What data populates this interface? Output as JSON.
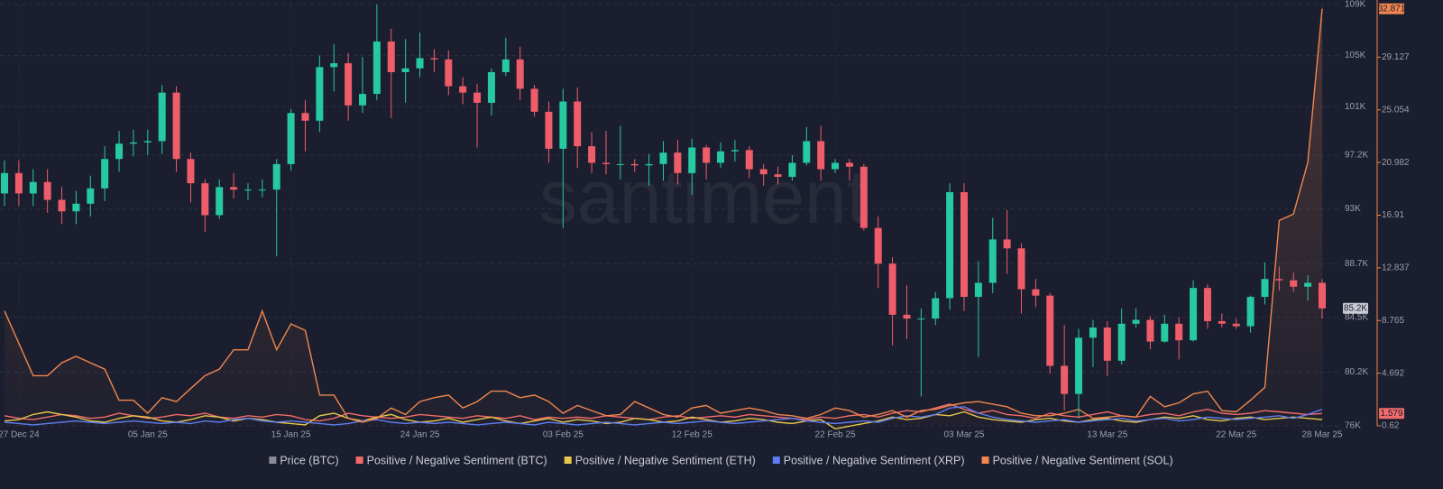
{
  "chart_data": {
    "type": "candlestick",
    "watermark": "santiment",
    "categories": [
      null,
      "27 Dec 24",
      null,
      null,
      null,
      null,
      null,
      null,
      null,
      null,
      "05 Jan 25",
      null,
      null,
      null,
      null,
      null,
      null,
      null,
      null,
      null,
      "15 Jan 25",
      null,
      null,
      null,
      null,
      null,
      null,
      null,
      null,
      "24 Jan 25",
      null,
      null,
      null,
      null,
      null,
      null,
      null,
      null,
      null,
      "03 Feb 25",
      null,
      null,
      null,
      null,
      null,
      null,
      null,
      null,
      "12 Feb 25",
      null,
      null,
      null,
      null,
      null,
      null,
      null,
      null,
      null,
      "22 Feb 25",
      null,
      null,
      null,
      null,
      null,
      null,
      null,
      null,
      "03 Mar 25",
      null,
      null,
      null,
      null,
      null,
      null,
      null,
      null,
      null,
      "13 Mar 25",
      null,
      null,
      null,
      null,
      null,
      null,
      null,
      null,
      "22 Mar 25",
      null,
      null,
      null,
      null,
      null,
      "28 Mar 25"
    ],
    "price": {
      "name": "Price (BTC)",
      "color": "#8a8d96",
      "up_color": "#26c9a1",
      "down_color": "#ef5d6b",
      "open": [
        94.2,
        95.8,
        94.2,
        95.1,
        93.7,
        92.8,
        93.4,
        94.6,
        96.9,
        98.1,
        98.2,
        98.3,
        102.1,
        96.9,
        95.0,
        92.5,
        94.7,
        94.5,
        94.5,
        94.5,
        96.5,
        100.5,
        99.9,
        104.1,
        104.4,
        101.1,
        102.0,
        106.1,
        103.7,
        104.0,
        104.8,
        104.7,
        102.6,
        102.1,
        101.3,
        103.7,
        104.7,
        102.4,
        100.6,
        97.7,
        101.4,
        97.9,
        96.6,
        96.5,
        96.5,
        96.4,
        96.5,
        97.4,
        95.8,
        97.8,
        96.6,
        97.5,
        97.6,
        96.1,
        95.7,
        95.5,
        96.6,
        98.3,
        96.1,
        96.6,
        96.3,
        91.5,
        88.7,
        84.7,
        84.4,
        84.4,
        86.0,
        94.3,
        86.1,
        87.2,
        90.6,
        89.9,
        86.7,
        86.2,
        80.7,
        78.5,
        82.9,
        83.7,
        81.1,
        84.0,
        84.3,
        82.6,
        84.0,
        82.7,
        86.8,
        84.2,
        84.0,
        83.8,
        86.1,
        87.5,
        87.4,
        86.9,
        87.2
      ],
      "high": [
        96.8,
        96.8,
        96.1,
        96.1,
        94.7,
        94.4,
        95.6,
        97.9,
        99.1,
        99.2,
        99.2,
        102.7,
        102.6,
        97.4,
        95.3,
        95.3,
        95.8,
        95.0,
        95.3,
        96.9,
        100.8,
        101.5,
        105.0,
        105.9,
        105.2,
        104.9,
        109.0,
        107.1,
        106.3,
        106.8,
        105.5,
        105.4,
        103.3,
        102.8,
        104.0,
        106.4,
        105.7,
        102.7,
        101.4,
        102.4,
        102.5,
        99.0,
        99.1,
        99.5,
        96.9,
        97.3,
        98.3,
        98.4,
        98.5,
        98.0,
        98.2,
        98.4,
        97.9,
        96.5,
        96.3,
        97.2,
        99.4,
        99.5,
        96.9,
        96.9,
        96.5,
        92.4,
        89.2,
        87.0,
        85.2,
        86.5,
        95.0,
        95.0,
        88.9,
        92.3,
        92.9,
        90.3,
        87.5,
        86.4,
        83.9,
        83.6,
        84.3,
        84.2,
        85.2,
        85.2,
        84.6,
        84.7,
        84.5,
        87.4,
        87.1,
        84.8,
        84.4,
        86.2,
        88.8,
        88.5,
        88.0,
        87.8,
        87.5
      ],
      "low": [
        93.2,
        93.2,
        93.2,
        92.7,
        91.8,
        91.8,
        92.4,
        93.6,
        95.9,
        97.1,
        97.2,
        97.3,
        95.9,
        93.5,
        91.2,
        92.2,
        93.8,
        93.7,
        93.9,
        89.3,
        96.0,
        97.5,
        99.0,
        102.2,
        99.9,
        100.5,
        101.5,
        100.1,
        101.3,
        103.3,
        103.7,
        101.9,
        101.2,
        97.8,
        100.3,
        103.4,
        101.5,
        100.2,
        96.6,
        91.5,
        96.2,
        95.8,
        95.7,
        95.3,
        95.9,
        94.8,
        95.2,
        94.9,
        94.1,
        95.3,
        96.2,
        96.7,
        95.4,
        94.8,
        94.9,
        95.2,
        96.4,
        95.2,
        95.8,
        95.2,
        91.3,
        86.8,
        82.3,
        82.8,
        78.3,
        83.9,
        85.1,
        85.0,
        81.4,
        86.4,
        87.9,
        84.8,
        85.3,
        80.1,
        77.2,
        76.6,
        80.6,
        79.9,
        80.8,
        83.7,
        82.0,
        82.5,
        81.2,
        82.6,
        83.6,
        83.7,
        83.6,
        83.3,
        85.5,
        86.6,
        86.5,
        85.8,
        84.4
      ],
      "close": [
        95.8,
        94.2,
        95.1,
        93.7,
        92.8,
        93.4,
        94.6,
        96.9,
        98.1,
        98.2,
        98.3,
        102.1,
        96.9,
        95.0,
        92.5,
        94.7,
        94.5,
        94.5,
        94.5,
        96.5,
        100.5,
        99.9,
        104.1,
        104.4,
        101.1,
        102.0,
        106.1,
        103.7,
        104.0,
        104.8,
        104.7,
        102.6,
        102.1,
        101.3,
        103.7,
        104.7,
        102.4,
        100.6,
        97.7,
        101.4,
        97.9,
        96.6,
        96.5,
        96.5,
        96.4,
        96.5,
        97.4,
        95.8,
        97.8,
        96.6,
        97.5,
        97.6,
        96.1,
        95.7,
        95.5,
        96.6,
        98.3,
        96.1,
        96.6,
        96.3,
        91.5,
        88.7,
        84.7,
        84.4,
        84.4,
        86.0,
        94.3,
        86.1,
        87.2,
        90.6,
        89.9,
        86.7,
        86.2,
        80.7,
        78.5,
        82.9,
        83.7,
        81.1,
        84.0,
        84.3,
        82.6,
        84.0,
        82.7,
        86.8,
        84.2,
        84.0,
        83.8,
        86.1,
        87.5,
        87.4,
        86.9,
        87.2,
        85.2
      ],
      "last_label": "85.2K"
    },
    "series": [
      {
        "name": "Positive / Negative Sentiment (BTC)",
        "color": "#f26b6b",
        "axis": "y2",
        "values": [
          1.4,
          1.2,
          1.1,
          1.3,
          1.5,
          1.4,
          1.2,
          1.3,
          1.6,
          1.4,
          1.2,
          1.3,
          1.5,
          1.4,
          1.6,
          1.3,
          1.2,
          1.4,
          1.3,
          1.5,
          1.4,
          1.1,
          1.0,
          1.2,
          1.6,
          1.4,
          1.3,
          1.2,
          1.3,
          1.5,
          1.4,
          1.3,
          1.2,
          1.4,
          1.3,
          1.2,
          1.4,
          1.1,
          1.3,
          1.2,
          1.3,
          1.2,
          1.4,
          1.3,
          1.2,
          1.1,
          1.3,
          1.4,
          1.2,
          1.3,
          1.4,
          1.3,
          1.5,
          1.4,
          1.3,
          1.2,
          1.1,
          1.3,
          1.2,
          1.4,
          1.5,
          1.3,
          1.6,
          1.8,
          1.7,
          2.0,
          2.3,
          1.9,
          1.6,
          1.8,
          1.5,
          1.4,
          1.2,
          1.6,
          1.4,
          1.3,
          1.5,
          1.7,
          1.4,
          1.3,
          1.5,
          1.6,
          1.4,
          1.7,
          1.9,
          1.6,
          1.5,
          1.6,
          1.8,
          1.7,
          1.6,
          1.5,
          1.579
        ]
      },
      {
        "name": "Positive / Negative Sentiment (ETH)",
        "color": "#e6c84b",
        "axis": "y2",
        "values": [
          1.0,
          1.1,
          1.5,
          1.7,
          1.5,
          1.3,
          1.0,
          0.9,
          1.2,
          1.4,
          1.3,
          1.0,
          0.9,
          1.1,
          1.4,
          1.3,
          1.0,
          1.2,
          1.1,
          0.9,
          0.8,
          0.7,
          1.4,
          1.6,
          1.2,
          1.0,
          1.3,
          1.5,
          1.1,
          0.9,
          1.0,
          1.2,
          0.9,
          1.1,
          1.3,
          1.0,
          0.8,
          1.0,
          1.2,
          0.9,
          1.1,
          1.0,
          0.8,
          0.9,
          1.2,
          1.1,
          0.9,
          1.0,
          1.3,
          1.1,
          0.9,
          1.0,
          1.2,
          1.1,
          0.9,
          0.8,
          1.0,
          1.1,
          0.4,
          0.6,
          0.8,
          1.0,
          1.3,
          1.1,
          1.2,
          1.5,
          1.4,
          1.7,
          1.3,
          1.1,
          1.0,
          0.9,
          1.1,
          1.2,
          1.0,
          0.9,
          1.1,
          1.2,
          1.0,
          0.9,
          1.1,
          1.3,
          1.2,
          1.4,
          1.1,
          1.0,
          1.2,
          1.3,
          1.1,
          1.2,
          1.3,
          1.2,
          1.1
        ]
      },
      {
        "name": "Positive / Negative Sentiment (XRP)",
        "color": "#5b7cf2",
        "axis": "y2",
        "values": [
          0.9,
          0.8,
          0.7,
          0.8,
          0.9,
          1.0,
          0.9,
          0.8,
          0.9,
          1.0,
          0.9,
          0.8,
          0.9,
          0.8,
          1.0,
          0.9,
          1.1,
          1.2,
          1.0,
          0.9,
          1.0,
          0.9,
          0.8,
          0.7,
          0.8,
          1.0,
          1.1,
          0.9,
          0.8,
          0.9,
          0.8,
          0.9,
          0.8,
          0.7,
          0.8,
          0.9,
          0.8,
          0.7,
          0.9,
          0.8,
          0.7,
          0.8,
          0.9,
          0.8,
          0.7,
          0.8,
          0.9,
          0.8,
          0.9,
          1.0,
          0.9,
          0.8,
          0.9,
          1.0,
          1.1,
          1.2,
          1.0,
          0.9,
          0.8,
          0.9,
          1.0,
          0.9,
          1.2,
          1.4,
          1.3,
          1.5,
          2.0,
          2.1,
          1.6,
          1.3,
          1.1,
          1.0,
          0.9,
          1.0,
          1.1,
          0.9,
          1.0,
          1.1,
          1.2,
          1.0,
          1.1,
          1.2,
          1.0,
          1.1,
          1.3,
          1.2,
          1.1,
          1.2,
          1.3,
          1.4,
          1.2,
          1.5,
          1.9
        ]
      },
      {
        "name": "Positive / Negative Sentiment (SOL)",
        "color": "#f0874f",
        "axis": "y2",
        "values": [
          9.5,
          7,
          4.5,
          4.5,
          5.5,
          6,
          5.5,
          5,
          2.6,
          2.6,
          1.6,
          2.8,
          2.5,
          3.5,
          4.5,
          5,
          6.5,
          6.5,
          9.5,
          6.5,
          8.5,
          8,
          3,
          3,
          1.2,
          0.9,
          1.2,
          2,
          1.5,
          2.5,
          2.8,
          3,
          2,
          2.5,
          3.3,
          3.3,
          2.8,
          3,
          2.5,
          1.6,
          2.2,
          1.8,
          1.4,
          1.5,
          2.5,
          2,
          1.5,
          1.3,
          2,
          2.2,
          1.6,
          1.8,
          2,
          1.8,
          1.5,
          1.4,
          1.2,
          1.5,
          2,
          1.8,
          1.3,
          1.5,
          1.8,
          1.3,
          1.8,
          1.9,
          2.2,
          2.4,
          2.5,
          2.3,
          2.1,
          1.6,
          1.4,
          1.4,
          1.6,
          1.9,
          1.2,
          1.3,
          1.4,
          1.3,
          2.9,
          2.1,
          2.4,
          3.1,
          3.3,
          1.8,
          1.7,
          2.6,
          3.6,
          16.5,
          17,
          21,
          32.871
        ]
      }
    ],
    "ylim": [
      76,
      109
    ],
    "yticks": [
      {
        "value": 76,
        "label": "76K"
      },
      {
        "value": 80.2,
        "label": "80.2K"
      },
      {
        "value": 84.5,
        "label": "84.5K"
      },
      {
        "value": 88.7,
        "label": "88.7K"
      },
      {
        "value": 93,
        "label": "93K"
      },
      {
        "value": 97.2,
        "label": "97.2K"
      },
      {
        "value": 101,
        "label": "101K"
      },
      {
        "value": 105,
        "label": "105K"
      },
      {
        "value": 109,
        "label": "109K"
      }
    ],
    "y2lim": [
      0.62,
      33.2
    ],
    "y2ticks": [
      0.62,
      4.692,
      8.765,
      12.837,
      16.91,
      20.982,
      25.054,
      29.127
    ],
    "grid": true,
    "legend": "bottom"
  }
}
